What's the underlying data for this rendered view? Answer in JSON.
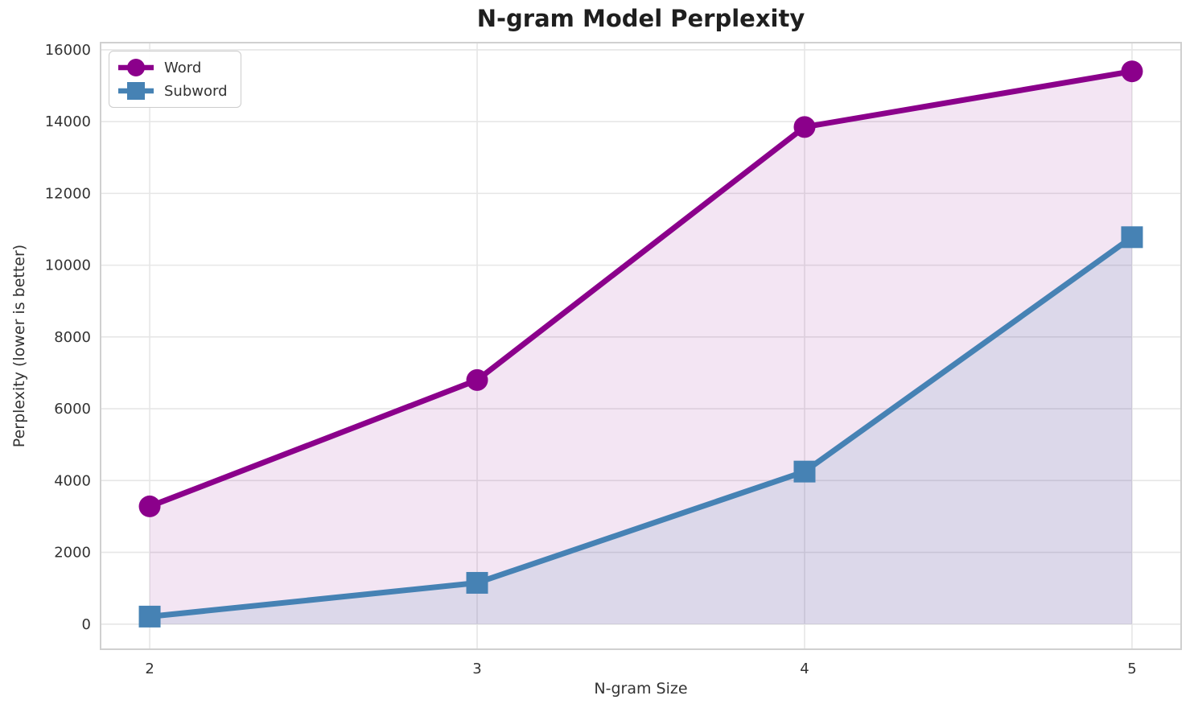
{
  "title": "N-gram Model Perplexity",
  "chart_data": {
    "type": "line",
    "title": "N-gram Model Perplexity",
    "xlabel": "N-gram Size",
    "ylabel": "Perplexity (lower is better)",
    "x": [
      2,
      3,
      4,
      5
    ],
    "series": [
      {
        "name": "Word",
        "values": [
          3280,
          6800,
          13850,
          15400
        ],
        "color": "#8B008B",
        "marker": "circle",
        "fill_color": "rgba(139,0,139,0.10)"
      },
      {
        "name": "Subword",
        "values": [
          210,
          1150,
          4250,
          10780
        ],
        "color": "#4682B4",
        "marker": "square",
        "fill_color": "rgba(70,130,180,0.13)"
      }
    ],
    "area_fill_baseline": 0,
    "xticks": [
      "2",
      "3",
      "4",
      "5"
    ],
    "xtick_values": [
      2,
      3,
      4,
      5
    ],
    "yticks": [
      "0",
      "2000",
      "4000",
      "6000",
      "8000",
      "10000",
      "12000",
      "14000",
      "16000"
    ],
    "ytick_values": [
      0,
      2000,
      4000,
      6000,
      8000,
      10000,
      12000,
      14000,
      16000
    ],
    "xlim": [
      1.85,
      5.15
    ],
    "ylim": [
      -700,
      16200
    ],
    "grid": true,
    "legend_position": "upper-left",
    "legend_labels": [
      "Word",
      "Subword"
    ]
  },
  "colors": {
    "grid": "#e6e6e6",
    "spine": "#d0d0d0",
    "tick_text": "#333333",
    "title_text": "#1f1f1f",
    "background": "#ffffff"
  }
}
